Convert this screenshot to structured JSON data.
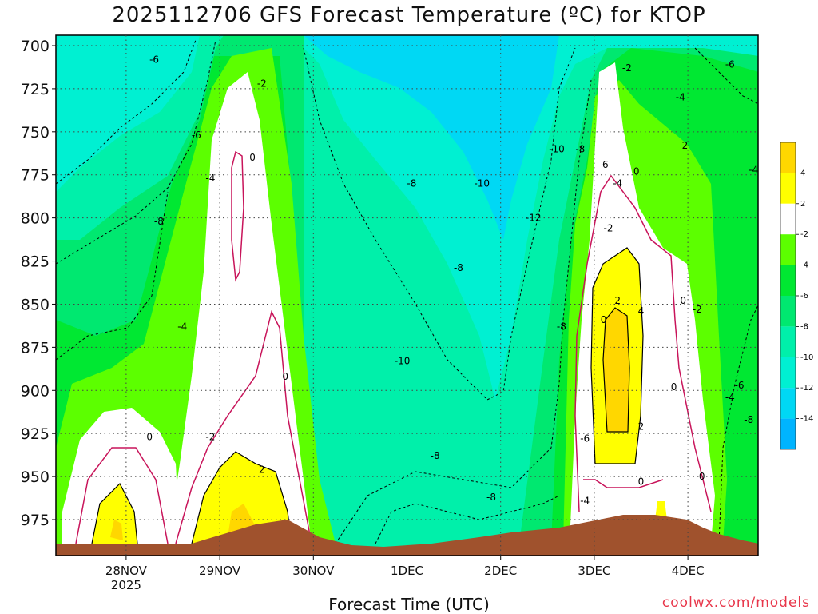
{
  "chart_data": {
    "type": "heatmap",
    "title": "2025112706 GFS Forecast Temperature (ºC) for KTOP",
    "xlabel": "Forecast Time (UTC)",
    "ylabel": "",
    "y_ticks": [
      700,
      725,
      750,
      775,
      800,
      825,
      850,
      875,
      900,
      925,
      950,
      975
    ],
    "y_range": [
      700,
      990
    ],
    "x_ticks": [
      "28NOV",
      "29NOV",
      "30NOV",
      "1DEC",
      "2DEC",
      "3DEC",
      "4DEC"
    ],
    "x_ticks_days": [
      1,
      2,
      3,
      4,
      5,
      6,
      7
    ],
    "x_range_days": [
      0.25,
      7.75
    ],
    "x_sublabel": "2025",
    "legend_levels": [
      -14,
      -12,
      -10,
      -8,
      -6,
      -4,
      -2,
      2,
      4
    ],
    "legend_colors": [
      "#00b4ff",
      "#00d8f4",
      "#00f0d2",
      "#00f0aa",
      "#00e870",
      "#00e832",
      "#5cff00",
      "#ffffff",
      "#ffff00",
      "#ffd700"
    ],
    "grid": true,
    "contour_labels": [
      {
        "day": 1.3,
        "p": 708,
        "value": "-6"
      },
      {
        "day": 1.75,
        "p": 752,
        "value": "-6"
      },
      {
        "day": 1.35,
        "p": 802,
        "value": "-8"
      },
      {
        "day": 1.9,
        "p": 777,
        "value": "-4"
      },
      {
        "day": 1.6,
        "p": 863,
        "value": "-4"
      },
      {
        "day": 2.45,
        "p": 722,
        "value": "-2"
      },
      {
        "day": 2.35,
        "p": 765,
        "value": "0"
      },
      {
        "day": 1.25,
        "p": 927,
        "value": "0"
      },
      {
        "day": 1.9,
        "p": 927,
        "value": "-2"
      },
      {
        "day": 2.7,
        "p": 892,
        "value": "0"
      },
      {
        "day": 2.45,
        "p": 946,
        "value": "2"
      },
      {
        "day": 4.05,
        "p": 780,
        "value": "-8"
      },
      {
        "day": 4.8,
        "p": 780,
        "value": "-10"
      },
      {
        "day": 5.6,
        "p": 760,
        "value": "-10"
      },
      {
        "day": 5.85,
        "p": 760,
        "value": "-8"
      },
      {
        "day": 5.35,
        "p": 800,
        "value": "-12"
      },
      {
        "day": 4.55,
        "p": 829,
        "value": "-8"
      },
      {
        "day": 5.65,
        "p": 863,
        "value": "-8"
      },
      {
        "day": 3.95,
        "p": 883,
        "value": "-10"
      },
      {
        "day": 4.3,
        "p": 938,
        "value": "-8"
      },
      {
        "day": 4.9,
        "p": 962,
        "value": "-8"
      },
      {
        "day": 5.9,
        "p": 928,
        "value": "-6"
      },
      {
        "day": 6.1,
        "p": 769,
        "value": "-6"
      },
      {
        "day": 6.35,
        "p": 713,
        "value": "-2"
      },
      {
        "day": 6.25,
        "p": 780,
        "value": "-4"
      },
      {
        "day": 6.45,
        "p": 773,
        "value": "0"
      },
      {
        "day": 6.15,
        "p": 806,
        "value": "-2"
      },
      {
        "day": 6.25,
        "p": 848,
        "value": "2"
      },
      {
        "day": 6.1,
        "p": 859,
        "value": "0"
      },
      {
        "day": 6.5,
        "p": 854,
        "value": "4"
      },
      {
        "day": 6.95,
        "p": 848,
        "value": "0"
      },
      {
        "day": 6.85,
        "p": 898,
        "value": "0"
      },
      {
        "day": 6.5,
        "p": 921,
        "value": "2"
      },
      {
        "day": 6.5,
        "p": 953,
        "value": "0"
      },
      {
        "day": 6.92,
        "p": 730,
        "value": "-4"
      },
      {
        "day": 6.95,
        "p": 758,
        "value": "-2"
      },
      {
        "day": 7.1,
        "p": 853,
        "value": "-2"
      },
      {
        "day": 7.15,
        "p": 950,
        "value": "0"
      },
      {
        "day": 7.45,
        "p": 711,
        "value": "-6"
      },
      {
        "day": 7.7,
        "p": 772,
        "value": "-4"
      },
      {
        "day": 7.55,
        "p": 897,
        "value": "-6"
      },
      {
        "day": 7.45,
        "p": 904,
        "value": "-4"
      },
      {
        "day": 7.65,
        "p": 917,
        "value": "-8"
      },
      {
        "day": 5.9,
        "p": 964,
        "value": "-4"
      }
    ]
  }
}
